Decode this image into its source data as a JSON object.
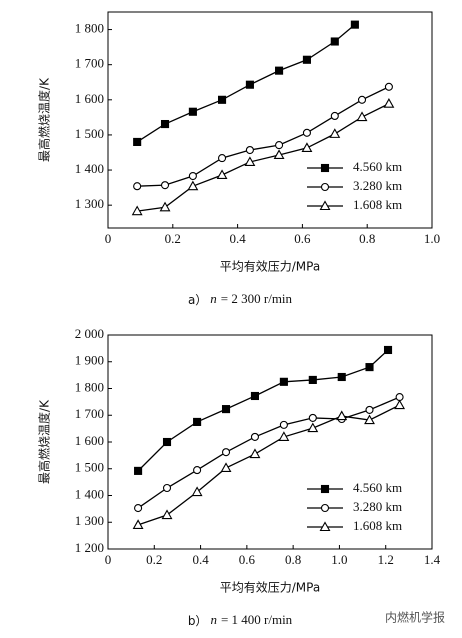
{
  "chart_data": [
    {
      "type": "line",
      "xlabel": "平均有效压力/MPa",
      "ylabel": "最高燃烧温度/K",
      "caption": {
        "prefix": "a）",
        "var": "n",
        "rest": "= 2 300 r/min"
      },
      "xlim": [
        0,
        1.0
      ],
      "xticks": [
        0,
        0.2,
        0.4,
        0.6,
        0.8,
        {
          "value": 1.0,
          "label": "1.0"
        }
      ],
      "ylim": [
        1235,
        1850
      ],
      "yticks": [
        {
          "value": 1300,
          "label": "1 300"
        },
        {
          "value": 1400,
          "label": "1 400"
        },
        {
          "value": 1500,
          "label": "1 500"
        },
        {
          "value": 1600,
          "label": "1 600"
        },
        {
          "value": 1700,
          "label": "1 700"
        },
        {
          "value": 1800,
          "label": "1 800"
        }
      ],
      "legend": "lower right",
      "series": [
        {
          "name": "4.560 km",
          "color": "#000000",
          "marker": "square",
          "x": [
            0.09,
            0.176,
            0.262,
            0.352,
            0.438,
            0.528,
            0.614,
            0.7,
            0.762
          ],
          "values": [
            1480,
            1531,
            1566,
            1600,
            1643,
            1683,
            1714,
            1766,
            1814
          ]
        },
        {
          "name": "3.280 km",
          "color": "#000000",
          "marker": "circle",
          "x": [
            0.09,
            0.176,
            0.262,
            0.352,
            0.438,
            0.528,
            0.614,
            0.7,
            0.784,
            0.867
          ],
          "values": [
            1354,
            1357,
            1383,
            1434,
            1457,
            1471,
            1506,
            1554,
            1600,
            1637
          ]
        },
        {
          "name": "1.608 km",
          "color": "#000000",
          "marker": "triangle",
          "x": [
            0.09,
            0.176,
            0.262,
            0.352,
            0.438,
            0.528,
            0.614,
            0.7,
            0.784,
            0.867
          ],
          "values": [
            1283,
            1294,
            1354,
            1386,
            1423,
            1443,
            1463,
            1503,
            1551,
            1589
          ]
        }
      ]
    },
    {
      "type": "line",
      "xlabel": "平均有效压力/MPa",
      "ylabel": "最高燃烧温度/K",
      "caption": {
        "prefix": "b）",
        "var": "n",
        "rest": "= 1 400 r/min"
      },
      "xlim": [
        0,
        1.4
      ],
      "xticks": [
        0,
        0.2,
        0.4,
        0.6,
        0.8,
        {
          "value": 1.0,
          "label": "1.0"
        },
        1.2,
        1.4
      ],
      "ylim": [
        1200,
        2000
      ],
      "yticks": [
        {
          "value": 1200,
          "label": "1 200"
        },
        {
          "value": 1300,
          "label": "1 300"
        },
        {
          "value": 1400,
          "label": "1 400"
        },
        {
          "value": 1500,
          "label": "1 500"
        },
        {
          "value": 1600,
          "label": "1 600"
        },
        {
          "value": 1700,
          "label": "1 700"
        },
        {
          "value": 1800,
          "label": "1 800"
        },
        {
          "value": 1900,
          "label": "1 900"
        },
        {
          "value": 2000,
          "label": "2 000"
        }
      ],
      "legend": "lower right",
      "series": [
        {
          "name": "4.560 km",
          "color": "#000000",
          "marker": "square",
          "x": [
            0.13,
            0.255,
            0.385,
            0.51,
            0.635,
            0.76,
            0.885,
            1.01,
            1.13,
            1.21
          ],
          "values": [
            1492,
            1600,
            1675,
            1723,
            1772,
            1825,
            1832,
            1843,
            1880,
            1944
          ]
        },
        {
          "name": "3.280 km",
          "color": "#000000",
          "marker": "circle",
          "x": [
            0.13,
            0.255,
            0.385,
            0.51,
            0.635,
            0.76,
            0.885,
            1.01,
            1.13,
            1.26
          ],
          "values": [
            1353,
            1428,
            1495,
            1562,
            1619,
            1664,
            1690,
            1686,
            1720,
            1768
          ]
        },
        {
          "name": "1.608 km",
          "color": "#000000",
          "marker": "triangle",
          "x": [
            0.13,
            0.255,
            0.385,
            0.51,
            0.635,
            0.76,
            0.885,
            1.01,
            1.13,
            1.26
          ],
          "values": [
            1290,
            1327,
            1413,
            1503,
            1555,
            1619,
            1652,
            1697,
            1682,
            1738
          ]
        }
      ]
    }
  ],
  "watermark": "内燃机学报"
}
